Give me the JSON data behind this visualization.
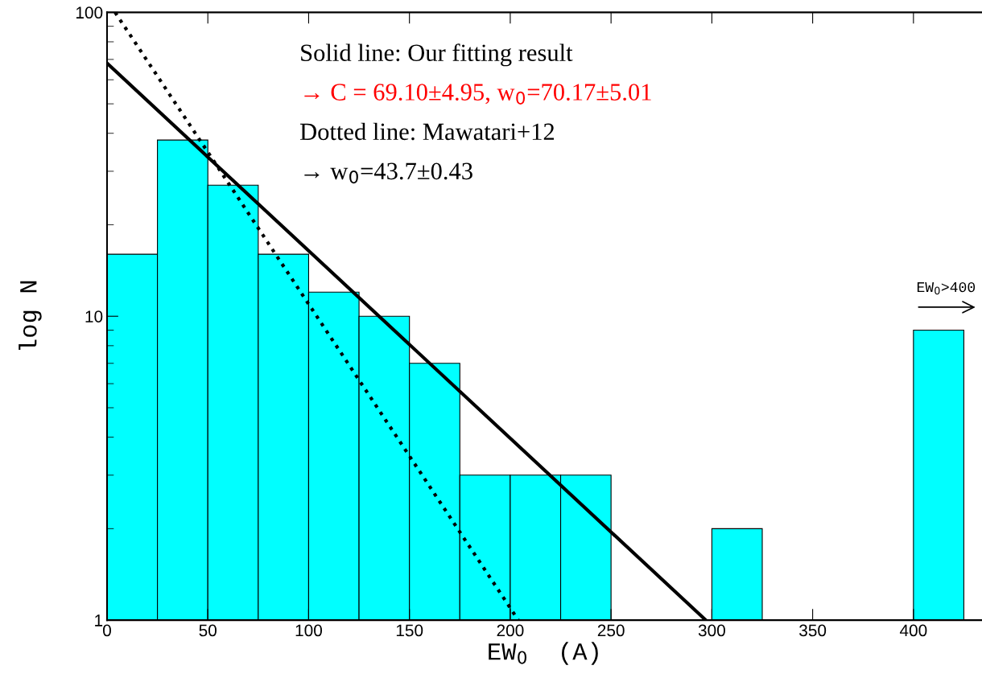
{
  "chart_data": {
    "type": "histogram",
    "xlabel": "EW$_{0}$  (A)",
    "ylabel": "log N",
    "bins": [
      0,
      25,
      50,
      75,
      100,
      125,
      150,
      175,
      200,
      225,
      250,
      275,
      300,
      325,
      350,
      375,
      400,
      425
    ],
    "values": [
      16,
      38,
      27,
      16,
      12,
      10,
      7,
      3,
      3,
      3,
      null,
      null,
      2,
      null,
      null,
      null,
      9
    ],
    "color": "#00ffff",
    "series": [
      {
        "type": "line",
        "x": [
          0,
          297
        ],
        "values": [
          68,
          1
        ],
        "color": "#000000",
        "line_style": "solid"
      },
      {
        "type": "line",
        "x": [
          4,
          204
        ],
        "values": [
          100,
          1
        ],
        "color": "#000000",
        "line_style": "dotted"
      }
    ],
    "log": "y",
    "xlim": [
      0,
      434
    ],
    "ylim": [
      1,
      100
    ],
    "xticks": [
      0,
      50,
      100,
      150,
      200,
      250,
      300,
      350,
      400
    ],
    "yticks": [
      1,
      10,
      100
    ],
    "annotations": [
      "Solid line: Our fitting result",
      "→ C = 69.10±4.95, w$_{0}$=70.17±5.01",
      "Dotted line: Mawatari+12",
      "→ w$_{0}$=43.7±0.43",
      "EW$_{0}$>400"
    ],
    "grid": false
  }
}
